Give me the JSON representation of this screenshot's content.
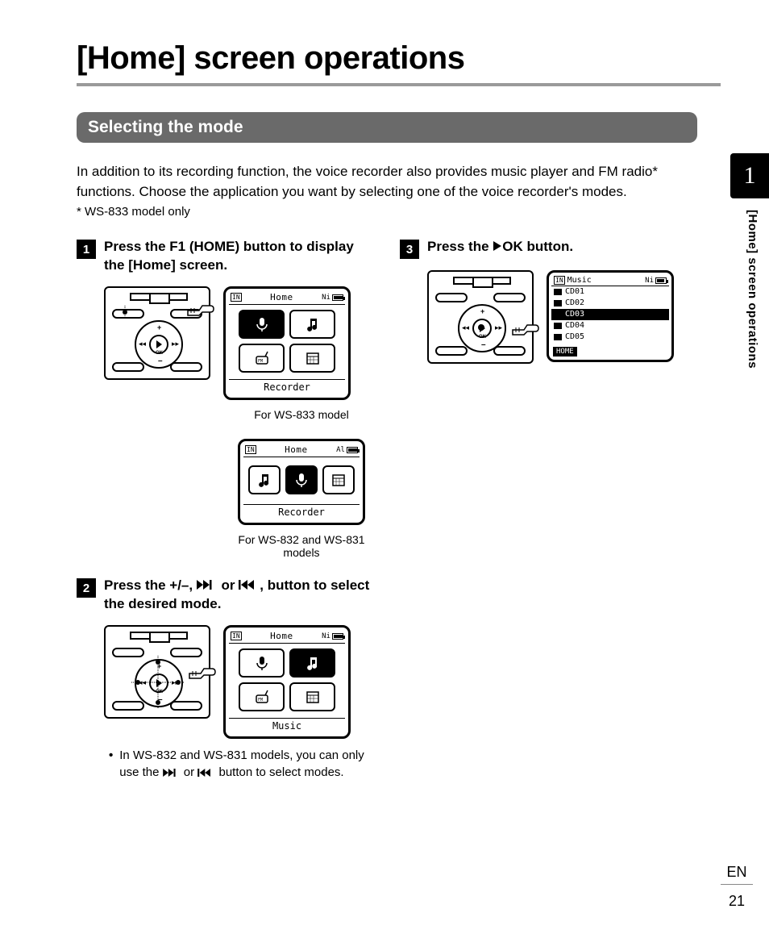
{
  "page": {
    "title": "[Home] screen operations",
    "section_heading": "Selecting the mode",
    "intro": "In addition to its recording function, the voice recorder also provides music player and FM radio* functions. Choose the application you want by selecting one of the voice recorder's modes.",
    "footnote": "* WS-833 model only",
    "side_tab_number": "1",
    "side_label": "[Home] screen operations",
    "language": "EN",
    "page_number": "21"
  },
  "steps": {
    "s1": {
      "num": "1",
      "text_pre": "Press the ",
      "f1": "F1",
      "paren": " (",
      "home": "HOME",
      "text_post": ") button to display the [",
      "home2": "Home",
      "text_end": "] screen."
    },
    "s2": {
      "num": "2",
      "text_pre": "Press the ",
      "buttons": "+/–, ",
      "or": " or ",
      "text_post": ", button to select the desired mode."
    },
    "s3": {
      "num": "3",
      "text_pre": "Press the ",
      "ok": "OK",
      "text_post": " button."
    }
  },
  "captions": {
    "ws833": "For WS-833 model",
    "ws832_831": "For WS-832 and WS-831 models"
  },
  "bullet": {
    "pre": "In WS-832 and WS-831 models, you can only use the ",
    "or": " or ",
    "post": " button to select modes."
  },
  "lcd": {
    "home_title": "Home",
    "batt_label": "Ni",
    "batt_label_al": "Al",
    "folder_in": "IN",
    "recorder": "Recorder",
    "music": "Music",
    "music_title": "Music",
    "list": [
      "CD01",
      "CD02",
      "CD03",
      "CD04",
      "CD05"
    ],
    "selected_index": 2,
    "home_btn": "HOME"
  }
}
